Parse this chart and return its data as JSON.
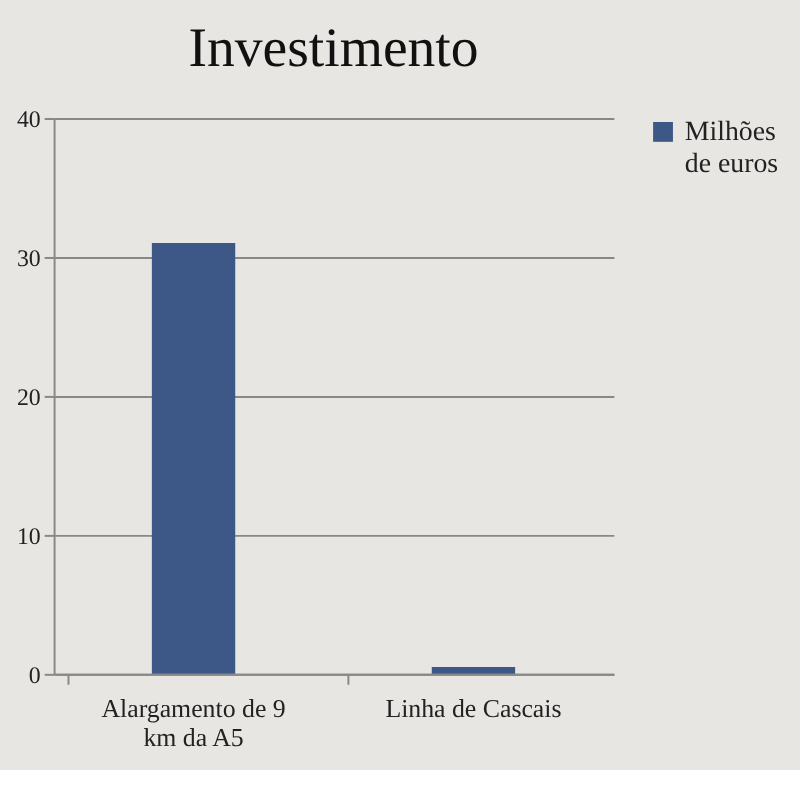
{
  "chart_data": {
    "type": "bar",
    "title": "Investimento",
    "categories": [
      "Alargamento de 9 km da A5",
      "Linha de Cascais"
    ],
    "series": [
      {
        "name": "Milhões de euros",
        "color": "#3d5787",
        "values": [
          31,
          0.5
        ]
      }
    ],
    "ylim": [
      0,
      40
    ],
    "yticks": [
      0,
      10,
      20,
      30,
      40
    ],
    "grid": "y",
    "legend": "right"
  }
}
